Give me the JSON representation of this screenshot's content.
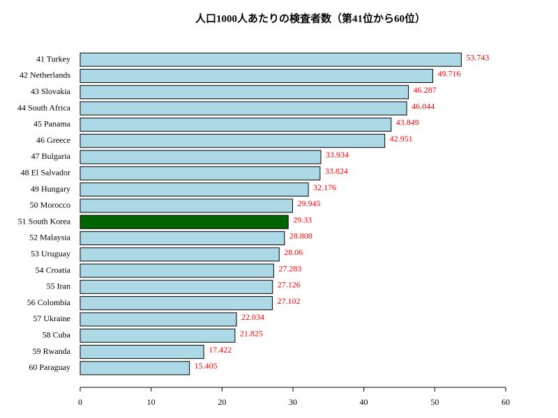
{
  "chart_data": {
    "type": "barh",
    "title": "人口1000人あたりの検査者数（第41位から60位）",
    "categories": [
      "41 Turkey",
      "42 Netherlands",
      "43 Slovakia",
      "44 South Africa",
      "45 Panama",
      "46 Greece",
      "47 Bulgaria",
      "48 El Salvador",
      "49 Hungary",
      "50 Morocco",
      "51 South Korea",
      "52 Malaysia",
      "53 Uruguay",
      "54 Croatia",
      "55 Iran",
      "56 Colombia",
      "57 Ukraine",
      "58 Cuba",
      "59 Rwanda",
      "60 Paraguay"
    ],
    "values": [
      53.743,
      49.716,
      46.287,
      46.044,
      43.849,
      42.951,
      33.934,
      33.824,
      32.176,
      29.945,
      29.33,
      28.808,
      28.06,
      27.283,
      27.126,
      27.102,
      22.034,
      21.825,
      17.422,
      15.405
    ],
    "colors": [
      "#add8e6",
      "#add8e6",
      "#add8e6",
      "#add8e6",
      "#add8e6",
      "#add8e6",
      "#add8e6",
      "#add8e6",
      "#add8e6",
      "#add8e6",
      "#006400",
      "#add8e6",
      "#add8e6",
      "#add8e6",
      "#add8e6",
      "#add8e6",
      "#add8e6",
      "#add8e6",
      "#add8e6",
      "#add8e6"
    ],
    "label_color": "#ff0000",
    "xlim": [
      0,
      60
    ],
    "xticks": [
      0,
      10,
      20,
      30,
      40,
      50,
      60
    ]
  }
}
